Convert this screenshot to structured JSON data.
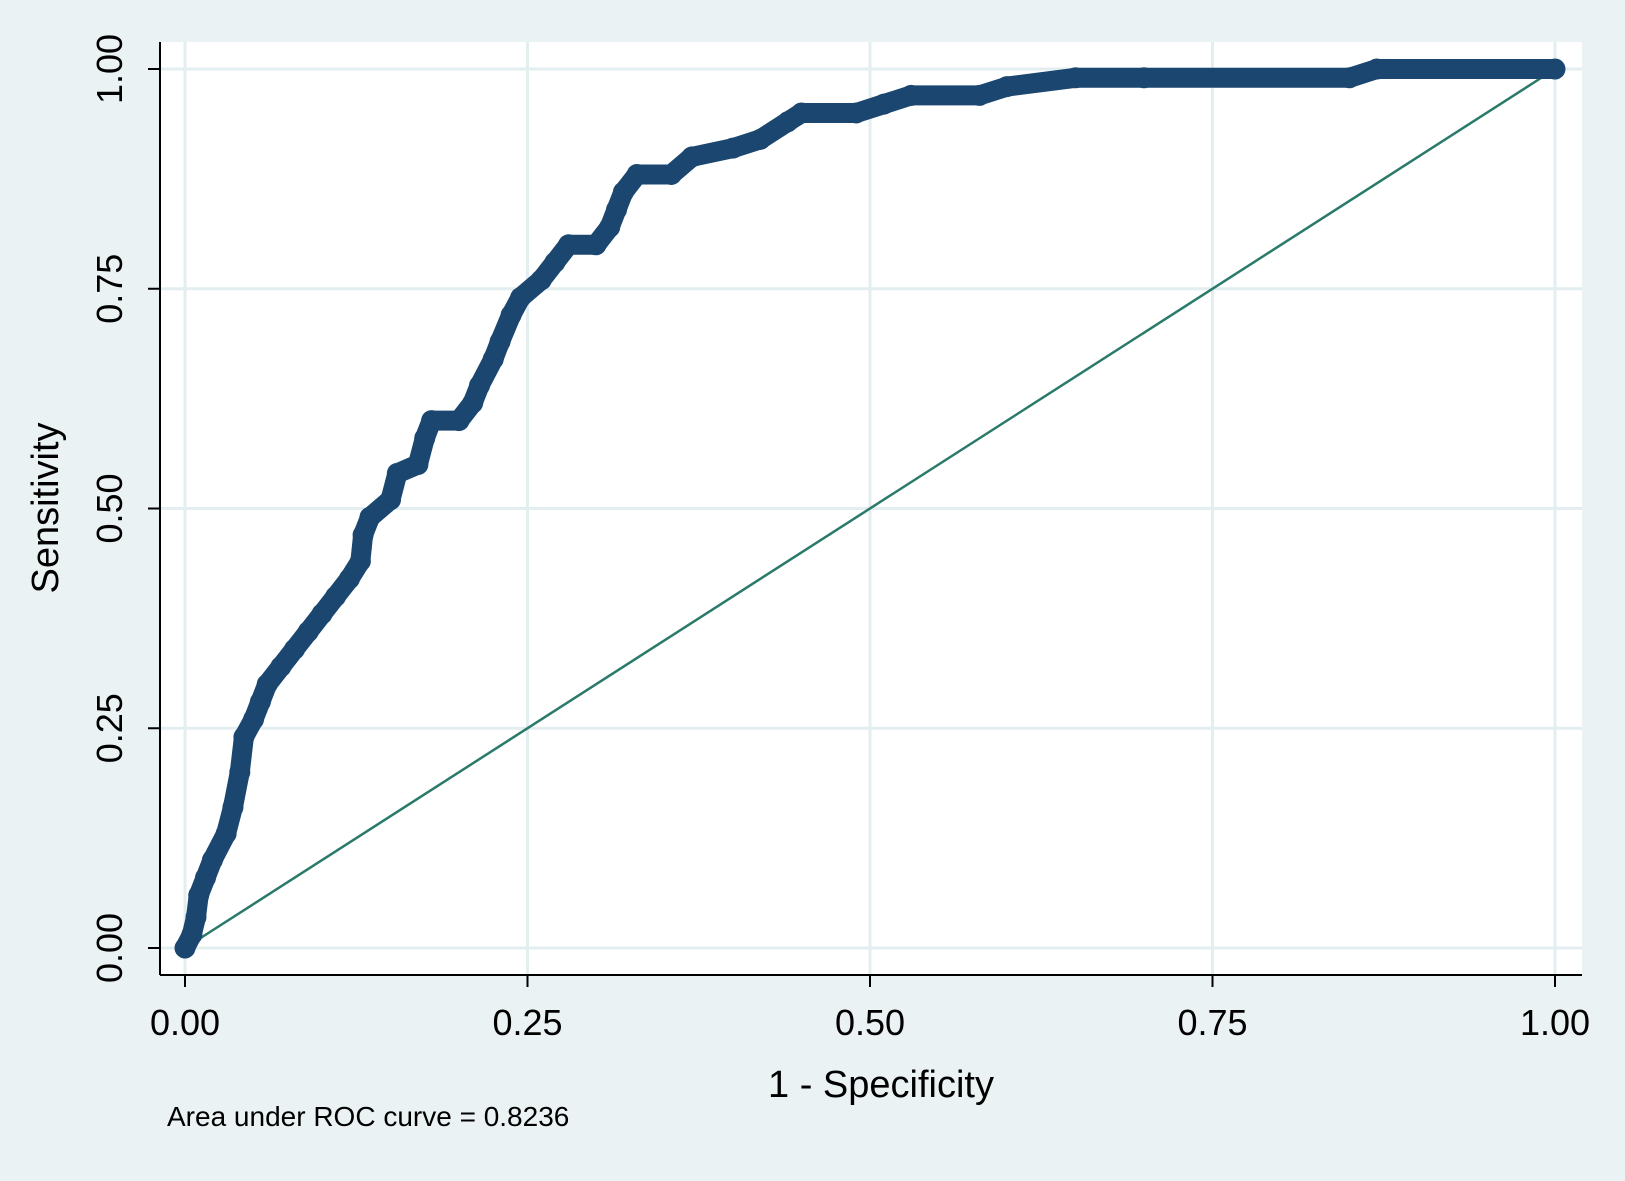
{
  "chart_data": {
    "type": "line",
    "xlabel": "1 - Specificity",
    "ylabel": "Sensitivity",
    "xlim": [
      0,
      1
    ],
    "ylim": [
      0,
      1
    ],
    "xticks": [
      "0.00",
      "0.25",
      "0.50",
      "0.75",
      "1.00"
    ],
    "yticks": [
      "0.00",
      "0.25",
      "0.50",
      "0.75",
      "1.00"
    ],
    "grid": true,
    "note": "Area under ROC curve = 0.8236",
    "colors": {
      "background": "#eaf2f3",
      "plot": "#ffffff",
      "grid": "#e3eef0",
      "curve": "#1a4670",
      "reference": "#2a7a6a"
    },
    "series": [
      {
        "values": [
          [
            0.0,
            0.0
          ],
          [
            0.005,
            0.015
          ],
          [
            0.008,
            0.035
          ],
          [
            0.01,
            0.06
          ],
          [
            0.015,
            0.08
          ],
          [
            0.02,
            0.1
          ],
          [
            0.03,
            0.13
          ],
          [
            0.035,
            0.16
          ],
          [
            0.04,
            0.2
          ],
          [
            0.043,
            0.24
          ],
          [
            0.05,
            0.26
          ],
          [
            0.055,
            0.28
          ],
          [
            0.06,
            0.3
          ],
          [
            0.07,
            0.32
          ],
          [
            0.08,
            0.34
          ],
          [
            0.09,
            0.36
          ],
          [
            0.1,
            0.38
          ],
          [
            0.11,
            0.4
          ],
          [
            0.12,
            0.42
          ],
          [
            0.128,
            0.44
          ],
          [
            0.13,
            0.47
          ],
          [
            0.135,
            0.49
          ],
          [
            0.15,
            0.51
          ],
          [
            0.155,
            0.54
          ],
          [
            0.17,
            0.55
          ],
          [
            0.175,
            0.58
          ],
          [
            0.18,
            0.6
          ],
          [
            0.2,
            0.6
          ],
          [
            0.21,
            0.62
          ],
          [
            0.215,
            0.64
          ],
          [
            0.225,
            0.67
          ],
          [
            0.23,
            0.69
          ],
          [
            0.238,
            0.72
          ],
          [
            0.245,
            0.74
          ],
          [
            0.26,
            0.76
          ],
          [
            0.27,
            0.78
          ],
          [
            0.28,
            0.8
          ],
          [
            0.3,
            0.8
          ],
          [
            0.31,
            0.82
          ],
          [
            0.315,
            0.84
          ],
          [
            0.32,
            0.86
          ],
          [
            0.33,
            0.88
          ],
          [
            0.355,
            0.88
          ],
          [
            0.37,
            0.9
          ],
          [
            0.4,
            0.91
          ],
          [
            0.42,
            0.92
          ],
          [
            0.44,
            0.94
          ],
          [
            0.45,
            0.95
          ],
          [
            0.49,
            0.95
          ],
          [
            0.51,
            0.96
          ],
          [
            0.53,
            0.97
          ],
          [
            0.58,
            0.97
          ],
          [
            0.6,
            0.98
          ],
          [
            0.65,
            0.99
          ],
          [
            0.7,
            0.99
          ],
          [
            0.85,
            0.99
          ],
          [
            0.87,
            1.0
          ],
          [
            1.0,
            1.0
          ]
        ]
      },
      {
        "values": [
          [
            0,
            0
          ],
          [
            1,
            1
          ]
        ]
      }
    ]
  }
}
